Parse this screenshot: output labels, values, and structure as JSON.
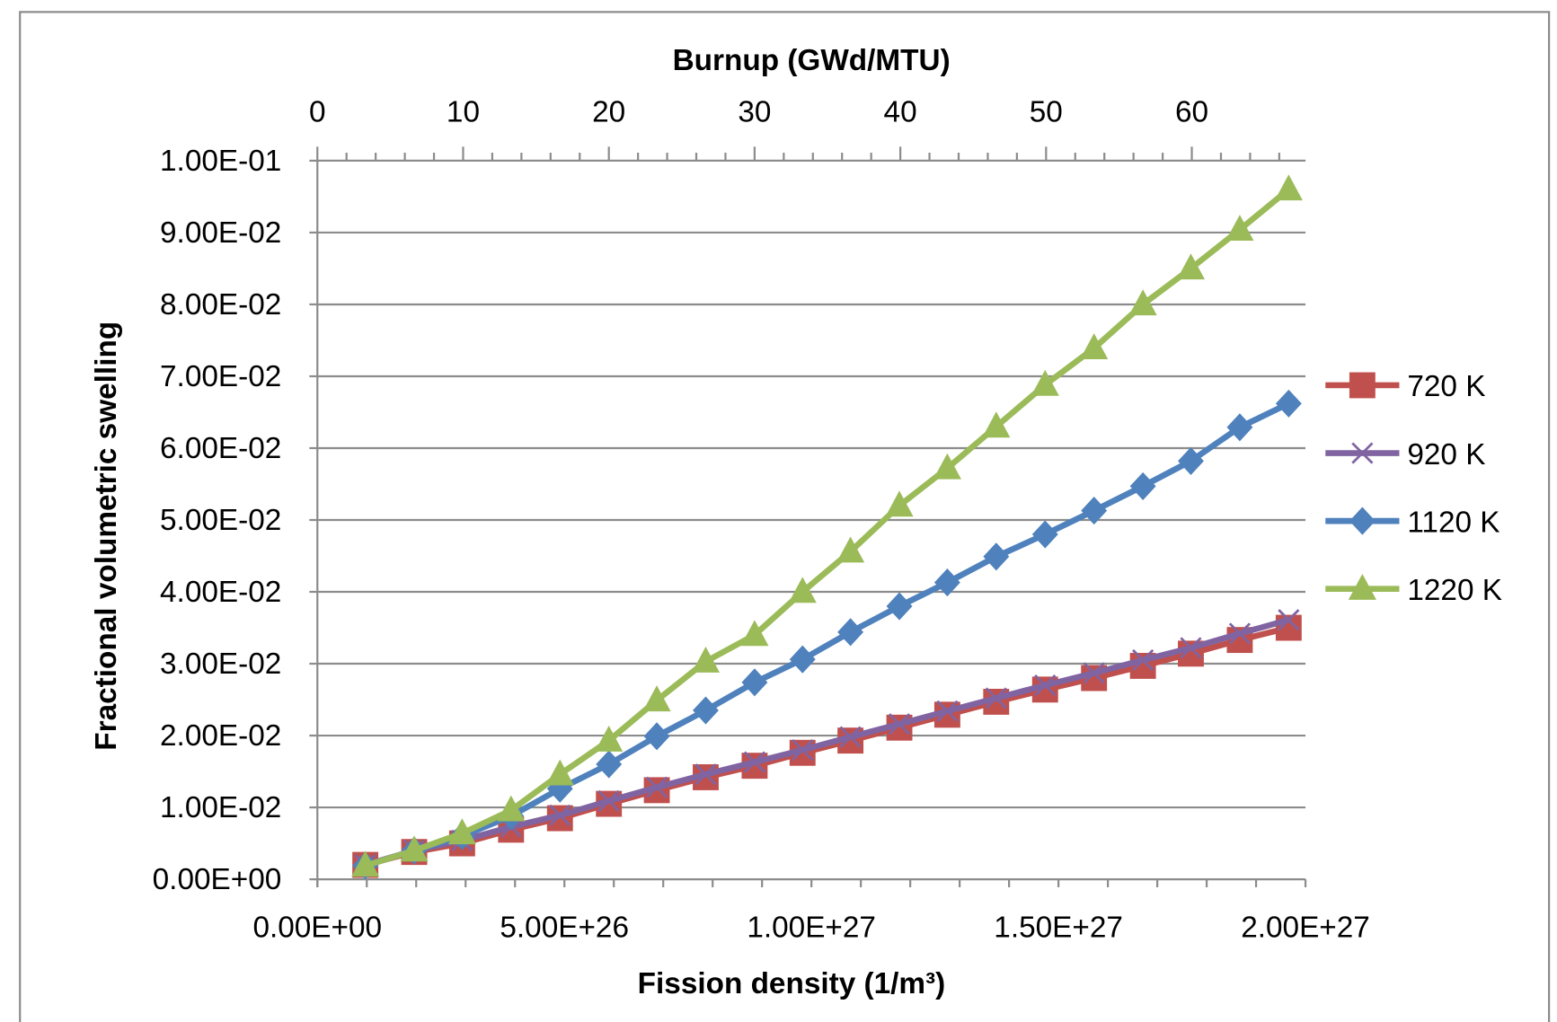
{
  "chart_data": {
    "type": "line",
    "title": "",
    "xlabel": "Fission density (1/m³)",
    "x2label": "Burnup (GWd/MTU)",
    "ylabel": "Fractional volumetric swelling",
    "xlim": [
      0,
      2e+27
    ],
    "x2lim": [
      0,
      67.8
    ],
    "ylim": [
      0,
      0.1
    ],
    "grid": "horizontal",
    "legend_position": "right",
    "x_tick_labels": [
      "0.00E+00",
      "5.00E+26",
      "1.00E+27",
      "1.50E+27",
      "2.00E+27"
    ],
    "x_ticks": [
      0,
      5e+26,
      1e+27,
      1.5e+27,
      2e+27
    ],
    "x2_tick_labels": [
      "0",
      "10",
      "20",
      "30",
      "40",
      "50",
      "60"
    ],
    "x2_ticks": [
      0,
      10,
      20,
      30,
      40,
      50,
      60
    ],
    "y_tick_labels": [
      "0.00E+00",
      "1.00E-02",
      "2.00E-02",
      "3.00E-02",
      "4.00E-02",
      "5.00E-02",
      "6.00E-02",
      "7.00E-02",
      "8.00E-02",
      "9.00E-02",
      "1.00E-01"
    ],
    "y_ticks": [
      0,
      0.01,
      0.02,
      0.03,
      0.04,
      0.05,
      0.06,
      0.07,
      0.08,
      0.09,
      0.1
    ],
    "x": [
      9.7e+25,
      1.96e+26,
      2.93e+26,
      3.92e+26,
      4.91e+26,
      5.9e+26,
      6.87e+26,
      7.86e+26,
      8.85e+26,
      9.82e+26,
      1.079e+27,
      1.178e+27,
      1.275e+27,
      1.374e+27,
      1.473e+27,
      1.572e+27,
      1.671e+27,
      1.768e+27,
      1.867e+27,
      1.966e+27
    ],
    "series": [
      {
        "name": "720 K",
        "color": "#C0504D",
        "marker": "square",
        "values": [
          0.002,
          0.0038,
          0.005,
          0.0069,
          0.0085,
          0.0105,
          0.0124,
          0.0142,
          0.0158,
          0.0176,
          0.0193,
          0.0211,
          0.0229,
          0.0247,
          0.0264,
          0.028,
          0.0297,
          0.0314,
          0.0333,
          0.035
        ]
      },
      {
        "name": "920 K",
        "color": "#8064A2",
        "marker": "x",
        "values": [
          0.002,
          0.004,
          0.0054,
          0.0073,
          0.0089,
          0.0109,
          0.0128,
          0.0146,
          0.0163,
          0.018,
          0.0198,
          0.0216,
          0.0234,
          0.0252,
          0.027,
          0.0287,
          0.0305,
          0.0322,
          0.0342,
          0.0361
        ]
      },
      {
        "name": "1120 K",
        "color": "#4F81BD",
        "marker": "diamond",
        "values": [
          0.0019,
          0.004,
          0.006,
          0.0088,
          0.0126,
          0.016,
          0.0199,
          0.0235,
          0.0274,
          0.0306,
          0.0344,
          0.038,
          0.0413,
          0.0449,
          0.048,
          0.0513,
          0.0547,
          0.0582,
          0.0629,
          0.0662
        ]
      },
      {
        "name": "1220 K",
        "color": "#9BBB59",
        "marker": "triangle",
        "values": [
          0.0019,
          0.004,
          0.0064,
          0.0096,
          0.0146,
          0.0193,
          0.0249,
          0.0303,
          0.034,
          0.04,
          0.0456,
          0.052,
          0.0572,
          0.063,
          0.0688,
          0.0739,
          0.08,
          0.085,
          0.0904,
          0.096
        ]
      }
    ]
  }
}
